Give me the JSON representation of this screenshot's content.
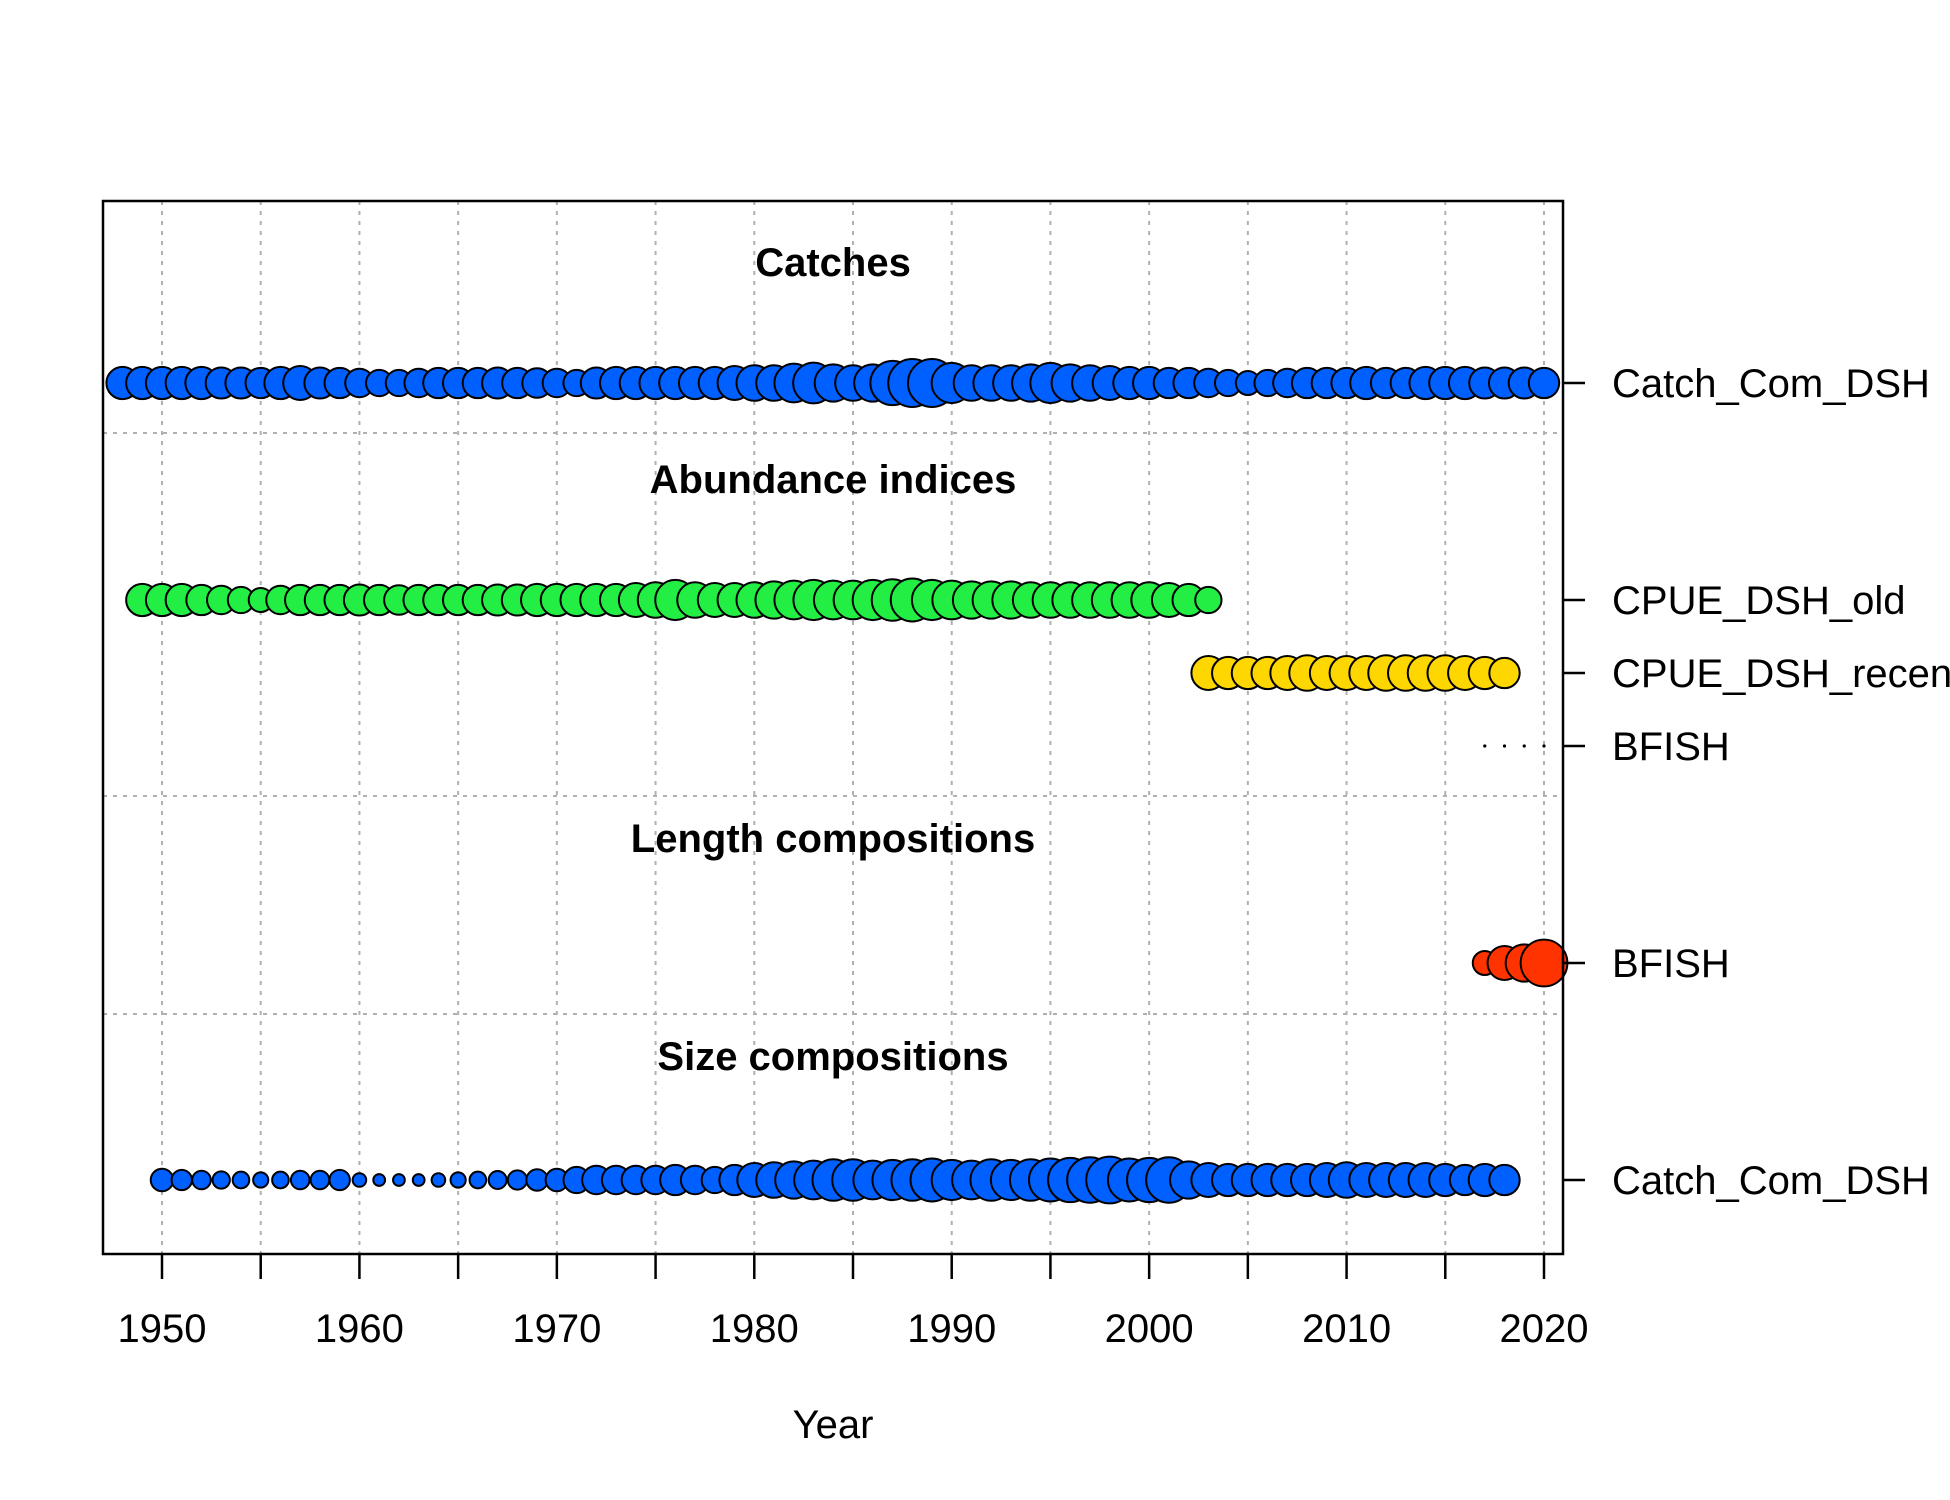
{
  "chart_data": {
    "type": "scatter",
    "title": "",
    "xlabel": "Year",
    "ylabel": "",
    "xlim": [
      1947,
      2021
    ],
    "x_ticks": [
      1950,
      1960,
      1970,
      1980,
      1990,
      2000,
      2010,
      2020
    ],
    "grid": true,
    "size_note": "circle area proportional to relative data weight",
    "sections": [
      {
        "title": "Catches",
        "rows": [
          {
            "label": "Catch_Com_DSH",
            "color": "#0060FF",
            "years": [
              1948,
              1949,
              1950,
              1951,
              1952,
              1953,
              1954,
              1955,
              1956,
              1957,
              1958,
              1959,
              1960,
              1961,
              1962,
              1963,
              1964,
              1965,
              1966,
              1967,
              1968,
              1969,
              1970,
              1971,
              1972,
              1973,
              1974,
              1975,
              1976,
              1977,
              1978,
              1979,
              1980,
              1981,
              1982,
              1983,
              1984,
              1985,
              1986,
              1987,
              1988,
              1989,
              1990,
              1991,
              1992,
              1993,
              1994,
              1995,
              1996,
              1997,
              1998,
              1999,
              2000,
              2001,
              2002,
              2003,
              2004,
              2005,
              2006,
              2007,
              2008,
              2009,
              2010,
              2011,
              2012,
              2013,
              2014,
              2015,
              2016,
              2017,
              2018,
              2019,
              2020
            ],
            "values": [
              0.45,
              0.45,
              0.45,
              0.45,
              0.45,
              0.42,
              0.42,
              0.4,
              0.45,
              0.5,
              0.42,
              0.4,
              0.35,
              0.3,
              0.3,
              0.35,
              0.4,
              0.4,
              0.4,
              0.42,
              0.4,
              0.38,
              0.35,
              0.3,
              0.42,
              0.45,
              0.45,
              0.45,
              0.45,
              0.45,
              0.45,
              0.5,
              0.55,
              0.55,
              0.65,
              0.72,
              0.6,
              0.55,
              0.6,
              0.85,
              1.0,
              1.0,
              0.7,
              0.55,
              0.55,
              0.55,
              0.6,
              0.7,
              0.6,
              0.55,
              0.5,
              0.45,
              0.45,
              0.4,
              0.4,
              0.35,
              0.3,
              0.25,
              0.3,
              0.35,
              0.4,
              0.4,
              0.4,
              0.45,
              0.4,
              0.4,
              0.45,
              0.45,
              0.45,
              0.42,
              0.42,
              0.42,
              0.4
            ]
          }
        ]
      },
      {
        "title": "Abundance indices",
        "rows": [
          {
            "label": "CPUE_DSH_old",
            "color": "#22EE44",
            "years": [
              1949,
              1950,
              1951,
              1952,
              1953,
              1954,
              1955,
              1956,
              1957,
              1958,
              1959,
              1960,
              1961,
              1962,
              1963,
              1964,
              1965,
              1966,
              1967,
              1968,
              1969,
              1970,
              1971,
              1972,
              1973,
              1974,
              1975,
              1976,
              1977,
              1978,
              1979,
              1980,
              1981,
              1982,
              1983,
              1984,
              1985,
              1986,
              1987,
              1988,
              1989,
              1990,
              1991,
              1992,
              1993,
              1994,
              1995,
              1996,
              1997,
              1998,
              1999,
              2000,
              2001,
              2002,
              2003
            ],
            "values": [
              0.45,
              0.45,
              0.45,
              0.4,
              0.35,
              0.3,
              0.25,
              0.35,
              0.4,
              0.4,
              0.4,
              0.42,
              0.4,
              0.38,
              0.4,
              0.4,
              0.4,
              0.4,
              0.42,
              0.42,
              0.45,
              0.45,
              0.45,
              0.45,
              0.45,
              0.5,
              0.55,
              0.7,
              0.55,
              0.5,
              0.5,
              0.55,
              0.6,
              0.65,
              0.7,
              0.65,
              0.65,
              0.7,
              0.75,
              0.8,
              0.7,
              0.65,
              0.6,
              0.6,
              0.6,
              0.55,
              0.55,
              0.55,
              0.55,
              0.55,
              0.55,
              0.55,
              0.5,
              0.45,
              0.3
            ]
          },
          {
            "label": "CPUE_DSH_recent",
            "color": "#FFD700",
            "years": [
              2003,
              2004,
              2005,
              2006,
              2007,
              2008,
              2009,
              2010,
              2011,
              2012,
              2013,
              2014,
              2015,
              2016,
              2017,
              2018
            ],
            "values": [
              0.5,
              0.45,
              0.45,
              0.45,
              0.5,
              0.55,
              0.5,
              0.5,
              0.5,
              0.55,
              0.55,
              0.55,
              0.55,
              0.5,
              0.45,
              0.4
            ]
          },
          {
            "label": "BFISH",
            "color": "#000000",
            "years": [
              2017,
              2018,
              2019,
              2020
            ],
            "values": [
              0.02,
              0.02,
              0.02,
              0.02
            ]
          }
        ]
      },
      {
        "title": "Length compositions",
        "rows": [
          {
            "label": "BFISH",
            "color": "#FF3300",
            "years": [
              2017,
              2018,
              2019,
              2020
            ],
            "values": [
              0.25,
              0.5,
              0.6,
              0.95
            ]
          }
        ]
      },
      {
        "title": "Size compositions",
        "rows": [
          {
            "label": "Catch_Com_DSH",
            "color": "#0060FF",
            "years": [
              1950,
              1951,
              1952,
              1953,
              1954,
              1955,
              1956,
              1957,
              1958,
              1959,
              1960,
              1961,
              1962,
              1963,
              1964,
              1965,
              1966,
              1967,
              1968,
              1969,
              1970,
              1971,
              1972,
              1973,
              1974,
              1975,
              1976,
              1977,
              1978,
              1979,
              1980,
              1981,
              1982,
              1983,
              1984,
              1985,
              1986,
              1987,
              1988,
              1989,
              1990,
              1991,
              1992,
              1993,
              1994,
              1995,
              1996,
              1997,
              1998,
              1999,
              2000,
              2001,
              2002,
              2003,
              2004,
              2005,
              2006,
              2007,
              2008,
              2009,
              2010,
              2011,
              2012,
              2013,
              2014,
              2015,
              2016,
              2017,
              2018
            ],
            "values": [
              0.22,
              0.18,
              0.15,
              0.13,
              0.12,
              0.1,
              0.12,
              0.15,
              0.15,
              0.18,
              0.08,
              0.06,
              0.06,
              0.06,
              0.08,
              0.1,
              0.12,
              0.14,
              0.16,
              0.2,
              0.22,
              0.3,
              0.35,
              0.35,
              0.35,
              0.35,
              0.4,
              0.35,
              0.3,
              0.4,
              0.5,
              0.55,
              0.6,
              0.65,
              0.75,
              0.75,
              0.65,
              0.7,
              0.75,
              0.8,
              0.7,
              0.65,
              0.75,
              0.7,
              0.75,
              0.8,
              0.85,
              0.9,
              0.95,
              0.8,
              0.85,
              0.9,
              0.6,
              0.5,
              0.45,
              0.45,
              0.45,
              0.45,
              0.45,
              0.5,
              0.55,
              0.5,
              0.5,
              0.5,
              0.5,
              0.45,
              0.4,
              0.45,
              0.4
            ]
          }
        ]
      }
    ]
  }
}
